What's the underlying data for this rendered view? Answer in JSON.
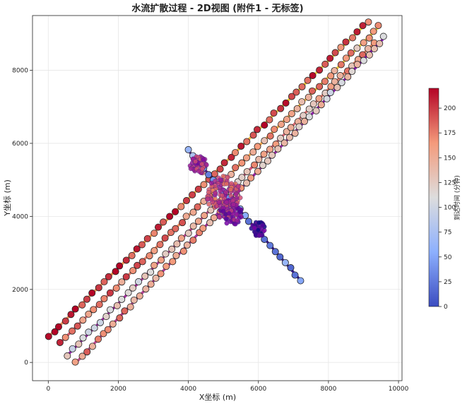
{
  "chart_data": {
    "type": "scatter",
    "title": "水流扩散过程 - 2D视图 (附件1 - 无标签)",
    "xlabel": "X坐标 (m)",
    "ylabel": "Y坐标 (m)",
    "xlim": [
      -450,
      10100
    ],
    "ylim": [
      -500,
      9500
    ],
    "xticks": [
      0,
      2000,
      4000,
      6000,
      8000,
      10000
    ],
    "yticks": [
      0,
      2000,
      4000,
      6000,
      8000
    ],
    "grid": true,
    "colorbar": {
      "label": "到达时间 (分钟)",
      "range": [
        0,
        220
      ],
      "ticks": [
        0,
        25,
        50,
        75,
        100,
        125,
        150,
        175,
        200
      ],
      "colormap": "coolwarm",
      "colors": [
        "#3b4cc0",
        "#8db0fe",
        "#dddddd",
        "#f49a7b",
        "#b40426"
      ]
    },
    "flow_cmap": [
      "#0d0887",
      "#7e03a8",
      "#cc4778",
      "#f89540",
      "#f0f921"
    ],
    "series": [
      {
        "x": [
          0,
          9150
        ],
        "y": [
          700,
          9350
        ],
        "t0": 210,
        "t1": 185,
        "ftA": 150,
        "ftB": 200
      },
      {
        "x": [
          350,
          9450
        ],
        "y": [
          550,
          9200
        ],
        "t0": 180,
        "t1": 150,
        "ftA": 120,
        "ftB": 200
      },
      {
        "x": [
          550,
          9300
        ],
        "y": [
          200,
          8750
        ],
        "t0": 120,
        "t1": 160,
        "ftA": 60,
        "ftB": 150
      },
      {
        "x": [
          800,
          9600
        ],
        "y": [
          0,
          8900
        ],
        "t0": 170,
        "t1": 110,
        "ftA": 100,
        "ftB": 50
      },
      {
        "x": [
          4000,
          7200
        ],
        "y": [
          5800,
          2250
        ],
        "t0": 60,
        "t1": 40,
        "ftA": 30,
        "ftB": 10
      }
    ],
    "clusters": [
      {
        "x": 5000,
        "y": 4600,
        "t": 150,
        "r": 500
      },
      {
        "x": 5200,
        "y": 4100,
        "t": 110,
        "r": 350
      },
      {
        "x": 6000,
        "y": 3650,
        "t": 60,
        "r": 200
      },
      {
        "x": 4300,
        "y": 5400,
        "t": 130,
        "r": 250
      }
    ]
  }
}
